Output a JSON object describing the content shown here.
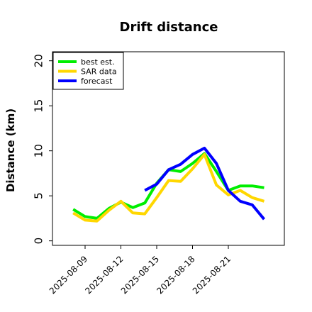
{
  "chart_data": {
    "type": "line",
    "title": "Drift distance",
    "xlabel": "",
    "ylabel": "Distance (km)",
    "ylim": [
      -0.5,
      21
    ],
    "x_ticks": [
      "2025-08-09",
      "2025-08-12",
      "2025-08-15",
      "2025-08-18",
      "2025-08-21"
    ],
    "y_ticks": [
      0,
      5,
      10,
      15,
      20
    ],
    "grid": false,
    "legend_position": "top-left",
    "series": [
      {
        "name": "best est.",
        "color": "#00ee00",
        "x": [
          "2025-08-08",
          "2025-08-09",
          "2025-08-10",
          "2025-08-11",
          "2025-08-12",
          "2025-08-13",
          "2025-08-14",
          "2025-08-15",
          "2025-08-16",
          "2025-08-17",
          "2025-08-18",
          "2025-08-19",
          "2025-08-20",
          "2025-08-21",
          "2025-08-22",
          "2025-08-23",
          "2025-08-24"
        ],
        "values": [
          3.5,
          2.7,
          2.5,
          3.6,
          4.3,
          3.7,
          4.2,
          6.4,
          7.9,
          7.7,
          8.6,
          9.7,
          7.7,
          5.6,
          6.1,
          6.1,
          5.9
        ]
      },
      {
        "name": "SAR data",
        "color": "#ffd700",
        "x": [
          "2025-08-08",
          "2025-08-09",
          "2025-08-10",
          "2025-08-11",
          "2025-08-12",
          "2025-08-13",
          "2025-08-14",
          "2025-08-15",
          "2025-08-16",
          "2025-08-17",
          "2025-08-18",
          "2025-08-19",
          "2025-08-20",
          "2025-08-21",
          "2025-08-22",
          "2025-08-23",
          "2025-08-24"
        ],
        "values": [
          3.1,
          2.3,
          2.2,
          3.4,
          4.4,
          3.1,
          3.0,
          4.8,
          6.7,
          6.6,
          8.0,
          9.6,
          6.2,
          5.1,
          5.6,
          4.8,
          4.4
        ]
      },
      {
        "name": "forecast",
        "color": "#0000ff",
        "x": [
          "2025-08-14",
          "2025-08-15",
          "2025-08-16",
          "2025-08-17",
          "2025-08-18",
          "2025-08-19",
          "2025-08-20",
          "2025-08-21",
          "2025-08-22",
          "2025-08-23",
          "2025-08-24"
        ],
        "values": [
          5.6,
          6.3,
          7.9,
          8.5,
          9.6,
          10.3,
          8.6,
          5.6,
          4.4,
          4.0,
          2.4
        ]
      }
    ]
  }
}
